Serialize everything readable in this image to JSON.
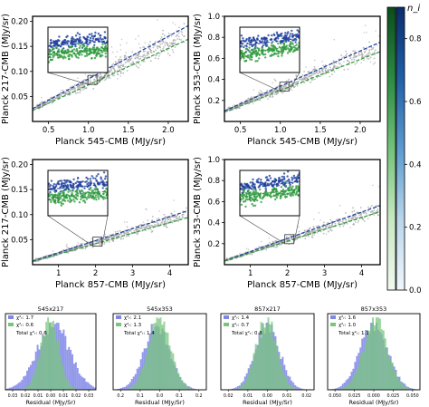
{
  "scatter_panels": [
    {
      "id": "p545x217",
      "xlabel": "Planck 545-CMB (MJy/sr)",
      "ylabel": "Planck 217-CMB (MJy/sr)",
      "xlim": [
        0.3,
        2.25
      ],
      "ylim": [
        0.0,
        0.21
      ],
      "xticks": [
        "0.5",
        "1.0",
        "1.5",
        "2.0"
      ],
      "yticks": [
        "0.05",
        "0.10",
        "0.15",
        "0.20"
      ],
      "blue_slope": 0.085,
      "green_slope": 0.073
    },
    {
      "id": "p545x353",
      "xlabel": "Planck 545-CMB (MJy/sr)",
      "ylabel": "Planck 353-CMB (MJy/sr)",
      "xlim": [
        0.3,
        2.25
      ],
      "ylim": [
        0.0,
        1.0
      ],
      "xticks": [
        "0.5",
        "1.0",
        "1.5",
        "2.0"
      ],
      "yticks": [
        "0.2",
        "0.4",
        "0.6",
        "0.8",
        "1.0"
      ],
      "blue_slope": 0.335,
      "green_slope": 0.295
    },
    {
      "id": "p857x217",
      "xlabel": "Planck 857-CMB (MJy/sr)",
      "ylabel": "Planck 217-CMB (MJy/sr)",
      "xlim": [
        0.3,
        4.5
      ],
      "ylim": [
        0.0,
        0.21
      ],
      "xticks": [
        "1",
        "2",
        "3",
        "4"
      ],
      "yticks": [
        "0.05",
        "0.10",
        "0.15",
        "0.20"
      ],
      "blue_slope": 0.024,
      "green_slope": 0.021
    },
    {
      "id": "p857x353",
      "xlabel": "Planck 857-CMB (MJy/sr)",
      "ylabel": "Planck 353-CMB (MJy/sr)",
      "xlim": [
        0.3,
        4.5
      ],
      "ylim": [
        0.0,
        1.0
      ],
      "xticks": [
        "1",
        "2",
        "3",
        "4"
      ],
      "yticks": [
        "0.2",
        "0.4",
        "0.6",
        "0.8",
        "1.0"
      ],
      "blue_slope": 0.125,
      "green_slope": 0.112
    }
  ],
  "colorbar": {
    "label": "n_i",
    "ticks": [
      "0.0",
      "0.2",
      "0.4",
      "0.6",
      "0.8"
    ],
    "range": [
      0.0,
      0.9
    ],
    "green_colors": [
      "#0b4d1e",
      "#2b8a43",
      "#74c27a",
      "#c8e8c3",
      "#f1f9ef"
    ],
    "blue_colors": [
      "#0a2d6e",
      "#1f5fa8",
      "#5a9bd0",
      "#b9d6ec",
      "#f0f6fc"
    ]
  },
  "histograms": [
    {
      "title": "545x217",
      "legend": [
        "χ²ᵣ: 1.7",
        "χ²ᵣ: 0.6"
      ],
      "total": "Total χ²ᵣ: 0.6",
      "ticks": [
        "0.03",
        "0.02",
        "0.01",
        "0.00",
        "0.01",
        "0.02",
        "0.03"
      ],
      "xlabel": "Residual (MJy/Sr)"
    },
    {
      "title": "545x353",
      "legend": [
        "χ²ᵣ: 2.1",
        "χ²ᵣ: 1.3"
      ],
      "total": "Total χ²ᵣ: 1.4",
      "ticks": [
        "0.2",
        "0.1",
        "0.0",
        "0.1",
        "0.2"
      ],
      "xlabel": "Residual (MJy/Sr)"
    },
    {
      "title": "857x217",
      "legend": [
        "χ²ᵣ: 1.4",
        "χ²ᵣ: 0.7"
      ],
      "total": "Total χ²ᵣ: 0.8",
      "ticks": [
        "0.02",
        "0.01",
        "0.00",
        "0.01",
        "0.02"
      ],
      "xlabel": "Residual (MJy/Sr)"
    },
    {
      "title": "857x353",
      "legend": [
        "χ²ᵣ: 1.6",
        "χ²ᵣ: 1.0"
      ],
      "total": "Total χ²ᵣ: 1.1",
      "ticks": [
        "0.050",
        "0.025",
        "0.000",
        "0.025",
        "0.050"
      ],
      "xlabel": "Residual (MJy/Sr)"
    }
  ],
  "colors": {
    "blue": "#1d3f9e",
    "green": "#2e9a3e",
    "gray": "#a6a6a6",
    "hist_blue": "#7f86e6",
    "hist_green": "#78c67c"
  },
  "chart_data": [
    {
      "type": "scatter",
      "title": "",
      "xlabel": "Planck 545-CMB (MJy/sr)",
      "ylabel": "Planck 217-CMB (MJy/sr)",
      "xlim": [
        0.3,
        2.25
      ],
      "ylim": [
        0.0,
        0.21
      ],
      "series": [
        {
          "values": [
            [
              0.5,
              0.04
            ],
            [
              1.0,
              0.08
            ],
            [
              1.5,
              0.12
            ],
            [
              2.0,
              0.165
            ]
          ]
        }
      ]
    },
    {
      "type": "scatter",
      "title": "",
      "xlabel": "Planck 545-CMB (MJy/sr)",
      "ylabel": "Planck 353-CMB (MJy/sr)",
      "xlim": [
        0.3,
        2.25
      ],
      "ylim": [
        0.0,
        1.0
      ],
      "series": [
        {
          "values": [
            [
              0.5,
              0.16
            ],
            [
              1.0,
              0.32
            ],
            [
              1.5,
              0.47
            ],
            [
              2.0,
              0.62
            ]
          ]
        }
      ]
    },
    {
      "type": "scatter",
      "title": "",
      "xlabel": "Planck 857-CMB (MJy/sr)",
      "ylabel": "Planck 217-CMB (MJy/sr)",
      "xlim": [
        0.3,
        4.5
      ],
      "ylim": [
        0.0,
        0.21
      ],
      "series": [
        {
          "values": [
            [
              1,
              0.025
            ],
            [
              2,
              0.05
            ],
            [
              3,
              0.07
            ],
            [
              4,
              0.095
            ]
          ]
        }
      ]
    },
    {
      "type": "scatter",
      "title": "",
      "xlabel": "Planck 857-CMB (MJy/sr)",
      "ylabel": "Planck 353-CMB (MJy/sr)",
      "xlim": [
        0.3,
        4.5
      ],
      "ylim": [
        0.0,
        1.0
      ],
      "series": [
        {
          "values": [
            [
              1,
              0.12
            ],
            [
              2,
              0.24
            ],
            [
              3,
              0.36
            ],
            [
              4,
              0.48
            ]
          ]
        }
      ]
    },
    {
      "type": "bar",
      "title": "545x217",
      "xlabel": "Residual (MJy/Sr)",
      "series": [
        {
          "name": "χ²ᵣ: 1.7",
          "values": []
        },
        {
          "name": "χ²ᵣ: 0.6",
          "values": []
        }
      ]
    },
    {
      "type": "bar",
      "title": "545x353",
      "xlabel": "Residual (MJy/Sr)",
      "series": [
        {
          "name": "χ²ᵣ: 2.1",
          "values": []
        },
        {
          "name": "χ²ᵣ: 1.3",
          "values": []
        }
      ]
    },
    {
      "type": "bar",
      "title": "857x217",
      "xlabel": "Residual (MJy/Sr)",
      "series": [
        {
          "name": "χ²ᵣ: 1.4",
          "values": []
        },
        {
          "name": "χ²ᵣ: 0.7",
          "values": []
        }
      ]
    },
    {
      "type": "bar",
      "title": "857x353",
      "xlabel": "Residual (MJy/Sr)",
      "series": [
        {
          "name": "χ²ᵣ: 1.6",
          "values": []
        },
        {
          "name": "χ²ᵣ: 1.0",
          "values": []
        }
      ]
    }
  ]
}
